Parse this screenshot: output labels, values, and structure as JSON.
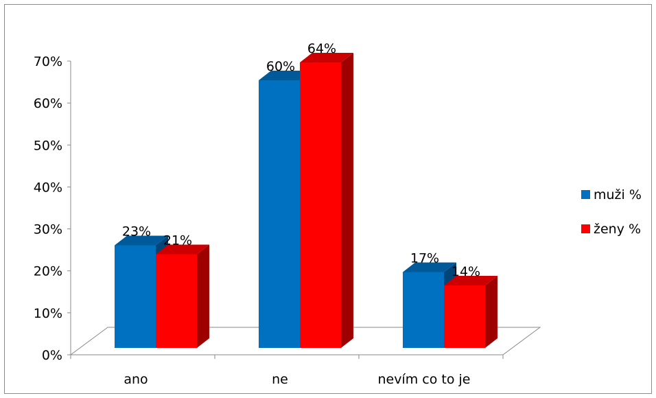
{
  "chart_data": {
    "type": "bar",
    "categories": [
      "ano",
      "ne",
      "nevím co to je"
    ],
    "series": [
      {
        "name": "muži %",
        "values": [
          23,
          60,
          17
        ],
        "labels": [
          "23%",
          "60%",
          "17%"
        ],
        "color": "#0070C0"
      },
      {
        "name": "ženy %",
        "values": [
          21,
          64,
          14
        ],
        "labels": [
          "21%",
          "64%",
          "14%"
        ],
        "color": "#FF0000"
      }
    ],
    "y_ticks": [
      "0%",
      "10%",
      "20%",
      "30%",
      "40%",
      "50%",
      "60%",
      "70%"
    ],
    "ylim": [
      0,
      70
    ],
    "legend_position": "right",
    "grid": false,
    "style": "3d-column"
  }
}
